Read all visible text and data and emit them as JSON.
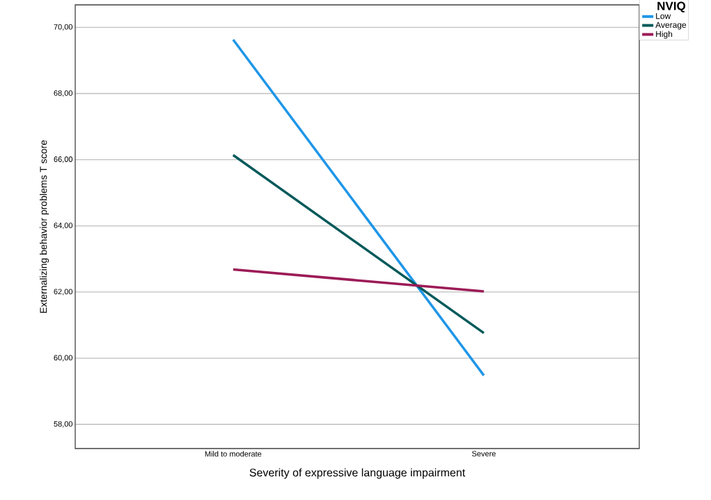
{
  "chart_data": {
    "type": "line",
    "xlabel": "Severity of expressive language impairment",
    "ylabel": "Externalizing behavior problems T score",
    "legend_title": "NVIQ",
    "categories": [
      "Mild to moderate",
      "Severe"
    ],
    "series": [
      {
        "name": "Low",
        "color": "#1e96e8",
        "values": [
          69.63,
          59.48
        ]
      },
      {
        "name": "Average",
        "color": "#02595a",
        "values": [
          66.14,
          60.76
        ]
      },
      {
        "name": "High",
        "color": "#9c1b57",
        "values": [
          62.68,
          62.02
        ]
      }
    ],
    "ylim": [
      57.27,
      70.68
    ],
    "yticks": [
      {
        "value": 58,
        "label": "58,00"
      },
      {
        "value": 60,
        "label": "60,00"
      },
      {
        "value": 62,
        "label": "62,00"
      },
      {
        "value": 64,
        "label": "64,00"
      },
      {
        "value": 66,
        "label": "66,00"
      },
      {
        "value": 68,
        "label": "68,00"
      },
      {
        "value": 70,
        "label": "70,00"
      }
    ],
    "grid": "y",
    "legend": "top right",
    "marker": "none",
    "line_style": "solid"
  }
}
